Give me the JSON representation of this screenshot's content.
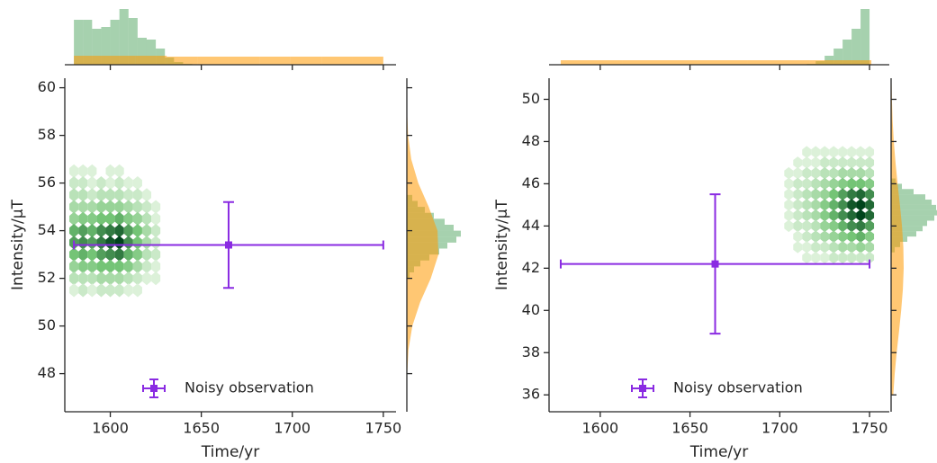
{
  "chart_data": [
    {
      "type": "joint",
      "xlabel": "Time/yr",
      "ylabel": "Intensity/μT",
      "xlim": [
        1575,
        1757
      ],
      "ylim": [
        46.4,
        60.4
      ],
      "xticks": [
        1600,
        1650,
        1700,
        1750
      ],
      "yticks": [
        48,
        50,
        52,
        54,
        56,
        58,
        60
      ],
      "hexbin": {
        "x": [
          1580,
          1585,
          1590,
          1595,
          1600,
          1605,
          1610,
          1615,
          1620,
          1625
        ],
        "y": [
          56.5,
          56,
          55.5,
          55,
          54.5,
          54,
          53.5,
          53,
          52.5,
          52,
          51.5
        ],
        "counts": [
          [
            1,
            1,
            1,
            0,
            1,
            1,
            0,
            0,
            0,
            0
          ],
          [
            2,
            2,
            1,
            2,
            1,
            2,
            1,
            1,
            0,
            0
          ],
          [
            3,
            3,
            2,
            3,
            3,
            3,
            2,
            2,
            1,
            0
          ],
          [
            4,
            4,
            4,
            5,
            5,
            5,
            4,
            3,
            2,
            1
          ],
          [
            5,
            6,
            6,
            7,
            7,
            8,
            6,
            5,
            3,
            1
          ],
          [
            8,
            9,
            8,
            10,
            11,
            12,
            9,
            7,
            4,
            2
          ],
          [
            9,
            10,
            9,
            11,
            13,
            14,
            10,
            7,
            4,
            2
          ],
          [
            7,
            8,
            7,
            9,
            10,
            11,
            8,
            6,
            3,
            2
          ],
          [
            5,
            6,
            6,
            7,
            7,
            7,
            6,
            4,
            2,
            1
          ],
          [
            3,
            3,
            3,
            4,
            4,
            4,
            3,
            2,
            1,
            1
          ],
          [
            1,
            2,
            1,
            2,
            2,
            2,
            1,
            1,
            0,
            0
          ]
        ]
      },
      "series": [
        {
          "name": "Noisy observation",
          "color": "#8a2be2",
          "x": [
            1665
          ],
          "values": [
            53.4
          ],
          "xerr": [
            85
          ],
          "yerr": [
            1.8
          ]
        }
      ],
      "legend": "lower center",
      "marginal_x": [
        {
          "color": "#3a9a4c",
          "bins": [
            1580,
            1585,
            1590,
            1595,
            1600,
            1605,
            1610,
            1615,
            1620,
            1625,
            1630,
            1635,
            1640,
            1645
          ],
          "values": [
            50,
            50,
            40,
            42,
            50,
            62,
            52,
            30,
            28,
            18,
            8,
            3,
            1
          ]
        },
        {
          "color": "#ff9900",
          "bins": [
            1580,
            1597,
            1614,
            1631,
            1648,
            1665,
            1682,
            1699,
            1716,
            1733,
            1750
          ],
          "values": [
            10,
            10,
            10,
            9,
            9,
            9,
            9,
            9,
            9,
            9
          ]
        }
      ],
      "marginal_y": {
        "hist": {
          "color": "#3a9a4c",
          "bins": [
            52,
            52.25,
            52.5,
            52.75,
            53,
            53.25,
            53.5,
            53.75,
            54,
            54.25,
            54.5,
            54.75,
            55,
            55.25,
            55.5
          ],
          "values": [
            3,
            8,
            15,
            25,
            36,
            45,
            55,
            60,
            52,
            42,
            30,
            20,
            12,
            6
          ]
        },
        "density": {
          "color": "#ff9900",
          "y": [
            47,
            48,
            49,
            50,
            51,
            52,
            53,
            54,
            55,
            56,
            57,
            58,
            59,
            60
          ],
          "values": [
            0.07,
            0.4,
            1.8,
            6.1,
            14.8,
            26.6,
            35.1,
            34.1,
            24.3,
            12.7,
            4.9,
            1.4,
            0.3,
            0.04
          ]
        }
      }
    },
    {
      "type": "joint",
      "xlabel": "Time/yr",
      "ylabel": "Intensity/μT",
      "xlim": [
        1571.5,
        1761
      ],
      "ylim": [
        35.2,
        51
      ],
      "xticks": [
        1600,
        1650,
        1700,
        1750
      ],
      "yticks": [
        36,
        38,
        40,
        42,
        44,
        46,
        48,
        50
      ],
      "hexbin": {
        "x": [
          1705,
          1710,
          1715,
          1720,
          1725,
          1730,
          1735,
          1740,
          1745,
          1750
        ],
        "y": [
          47.5,
          47,
          46.5,
          46,
          45.5,
          45,
          44.5,
          44,
          43.5,
          43,
          42.5
        ],
        "counts": [
          [
            0,
            0,
            1,
            1,
            1,
            1,
            1,
            1,
            1,
            1
          ],
          [
            0,
            1,
            1,
            1,
            2,
            2,
            2,
            2,
            2,
            2
          ],
          [
            1,
            1,
            2,
            2,
            3,
            3,
            4,
            4,
            4,
            3
          ],
          [
            1,
            2,
            2,
            3,
            4,
            5,
            6,
            7,
            7,
            6
          ],
          [
            1,
            2,
            3,
            4,
            5,
            7,
            9,
            11,
            12,
            10
          ],
          [
            1,
            2,
            3,
            4,
            6,
            8,
            10,
            13,
            14,
            12
          ],
          [
            1,
            2,
            3,
            4,
            6,
            8,
            10,
            12,
            14,
            12
          ],
          [
            1,
            2,
            2,
            3,
            5,
            6,
            8,
            10,
            11,
            9
          ],
          [
            0,
            1,
            2,
            3,
            4,
            5,
            6,
            7,
            8,
            6
          ],
          [
            0,
            1,
            1,
            2,
            2,
            3,
            4,
            4,
            5,
            4
          ],
          [
            0,
            0,
            1,
            1,
            1,
            2,
            2,
            2,
            2,
            2
          ]
        ]
      },
      "series": [
        {
          "name": "Noisy observation",
          "color": "#8a2be2",
          "x": [
            1664
          ],
          "values": [
            42.2
          ],
          "xerr": [
            86
          ],
          "yerr": [
            3.3
          ]
        }
      ],
      "legend": "lower center",
      "marginal_x": [
        {
          "color": "#3a9a4c",
          "bins": [
            1715,
            1720,
            1725,
            1730,
            1735,
            1740,
            1745,
            1750
          ],
          "values": [
            1,
            4,
            10,
            18,
            28,
            40,
            62
          ]
        },
        {
          "color": "#ff9900",
          "bins": [
            1578,
            1612.6,
            1647.2,
            1681.8,
            1716.4,
            1751
          ],
          "values": [
            5,
            5,
            5,
            5,
            5
          ]
        }
      ],
      "marginal_y": {
        "hist": {
          "color": "#3a9a4c",
          "bins": [
            42.75,
            43,
            43.25,
            43.5,
            43.75,
            44,
            44.25,
            44.5,
            44.75,
            45,
            45.25,
            45.5,
            45.75,
            46,
            46.25
          ],
          "values": [
            4,
            10,
            18,
            28,
            35,
            40,
            48,
            52,
            50,
            45,
            38,
            25,
            12,
            5
          ]
        },
        "density": {
          "color": "#ff9900",
          "y": [
            36,
            37,
            38,
            39,
            40,
            41,
            42,
            43,
            44,
            45,
            46,
            47,
            48,
            49,
            50,
            51
          ],
          "values": [
            2.4,
            4.0,
            6.2,
            8.8,
            11.2,
            13.1,
            14.0,
            13.6,
            12.1,
            9.8,
            7.2,
            4.9,
            3.0,
            1.7,
            0.9,
            0.4
          ]
        }
      }
    }
  ]
}
